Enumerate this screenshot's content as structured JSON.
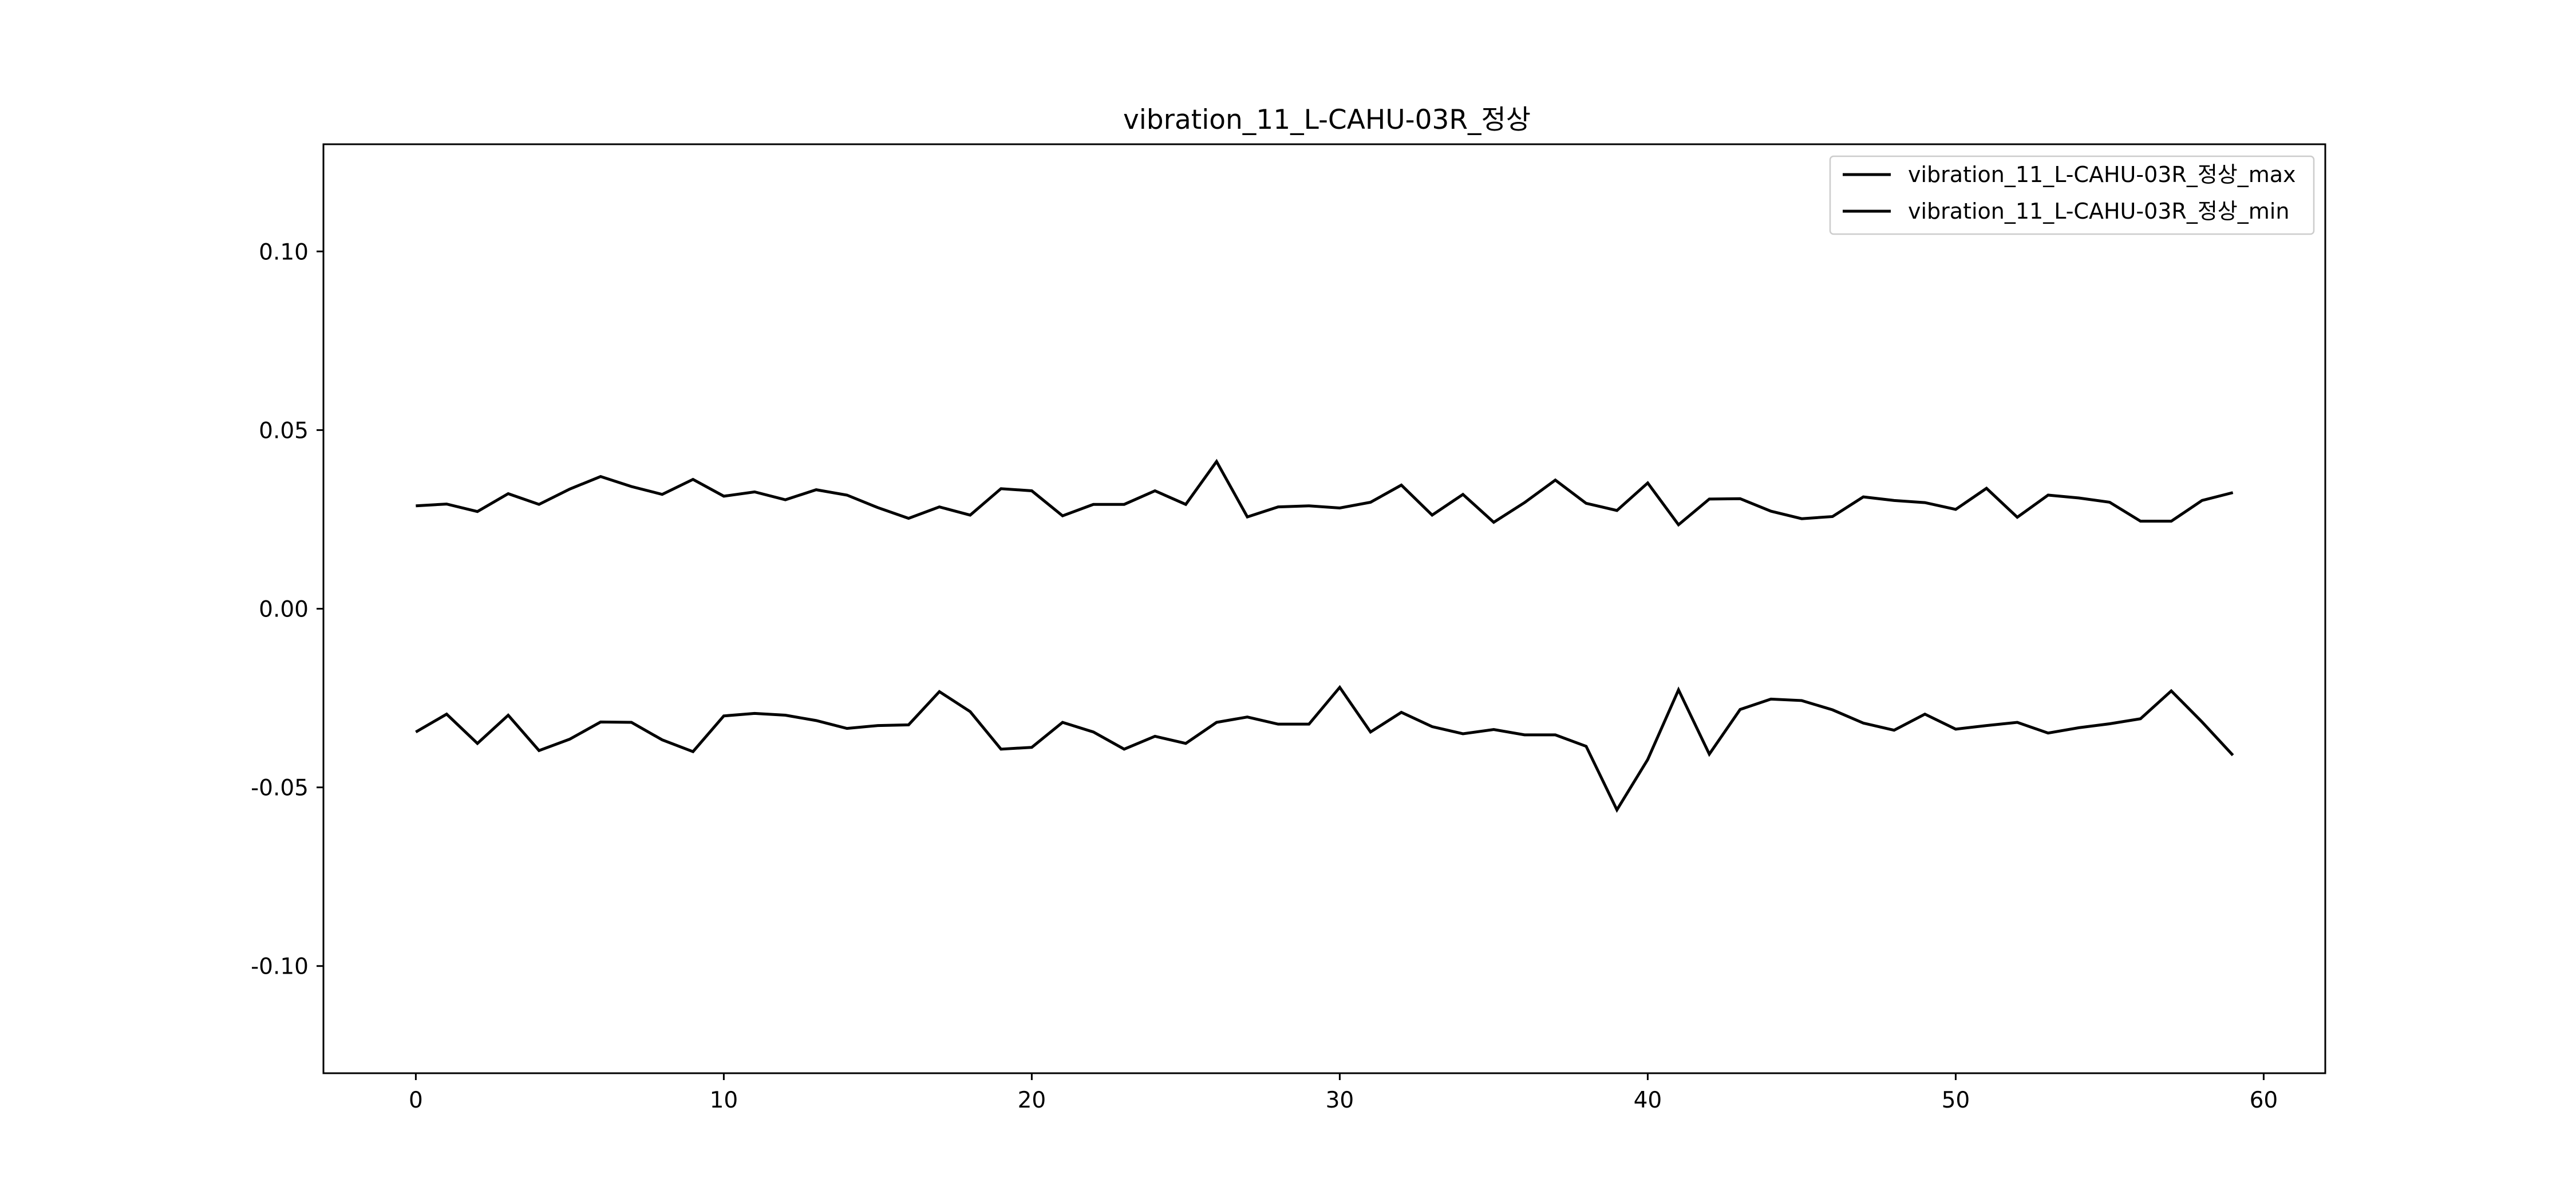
{
  "chart_data": {
    "type": "line",
    "title": "vibration_11_L-CAHU-03R_정상",
    "xlabel": "",
    "ylabel": "",
    "xlim": [
      -3,
      62
    ],
    "ylim": [
      -0.13,
      0.13
    ],
    "x_ticks": [
      0,
      10,
      20,
      30,
      40,
      50,
      60
    ],
    "x_tick_labels": [
      "0",
      "10",
      "20",
      "30",
      "40",
      "50",
      "60"
    ],
    "y_ticks": [
      0.1,
      0.05,
      0.0,
      -0.05,
      -0.1
    ],
    "y_tick_labels": [
      "0.10",
      "0.05",
      "0.00",
      "-0.05",
      "-0.10"
    ],
    "grid": false,
    "legend_position": "top-right",
    "x": [
      0,
      1,
      2,
      3,
      4,
      5,
      6,
      7,
      8,
      9,
      10,
      11,
      12,
      13,
      14,
      15,
      16,
      17,
      18,
      19,
      20,
      21,
      22,
      23,
      24,
      25,
      26,
      27,
      28,
      29,
      30,
      31,
      32,
      33,
      34,
      35,
      36,
      37,
      38,
      39,
      40,
      41,
      42,
      43,
      44,
      45,
      46,
      47,
      48,
      49,
      50,
      51,
      52,
      53,
      54,
      55,
      56,
      57,
      58,
      59
    ],
    "series": [
      {
        "name": "vibration_11_L-CAHU-03R_정상_max",
        "color": "#000000",
        "values": [
          0.0288,
          0.0293,
          0.0272,
          0.0322,
          0.0292,
          0.0335,
          0.037,
          0.0342,
          0.032,
          0.0362,
          0.0315,
          0.0327,
          0.0305,
          0.0333,
          0.0318,
          0.0283,
          0.0253,
          0.0285,
          0.0262,
          0.0336,
          0.033,
          0.026,
          0.0292,
          0.0292,
          0.033,
          0.0292,
          0.0412,
          0.0257,
          0.0285,
          0.0288,
          0.0282,
          0.0298,
          0.0346,
          0.0262,
          0.032,
          0.0242,
          0.0297,
          0.036,
          0.0295,
          0.0275,
          0.0352,
          0.0235,
          0.0307,
          0.0308,
          0.0273,
          0.0252,
          0.0258,
          0.0313,
          0.0303,
          0.0297,
          0.0278,
          0.0337,
          0.0256,
          0.0318,
          0.031,
          0.0298,
          0.0245,
          0.0245,
          0.0303,
          0.0325
        ]
      },
      {
        "name": "vibration_11_L-CAHU-03R_정상_min",
        "color": "#000000",
        "values": [
          -0.0345,
          -0.0295,
          -0.0377,
          -0.0298,
          -0.0397,
          -0.0365,
          -0.0317,
          -0.0318,
          -0.0367,
          -0.04,
          -0.03,
          -0.0293,
          -0.0298,
          -0.0313,
          -0.0335,
          -0.0327,
          -0.0325,
          -0.0232,
          -0.0288,
          -0.0393,
          -0.0388,
          -0.0318,
          -0.0345,
          -0.0393,
          -0.0357,
          -0.0377,
          -0.0318,
          -0.0303,
          -0.0323,
          -0.0323,
          -0.022,
          -0.0345,
          -0.029,
          -0.033,
          -0.035,
          -0.0338,
          -0.0353,
          -0.0353,
          -0.0385,
          -0.0563,
          -0.0422,
          -0.0227,
          -0.0407,
          -0.0282,
          -0.0253,
          -0.0257,
          -0.0283,
          -0.032,
          -0.034,
          -0.0295,
          -0.0337,
          -0.0327,
          -0.0318,
          -0.0348,
          -0.0333,
          -0.0322,
          -0.0308,
          -0.023,
          -0.0317,
          -0.041
        ]
      }
    ]
  }
}
